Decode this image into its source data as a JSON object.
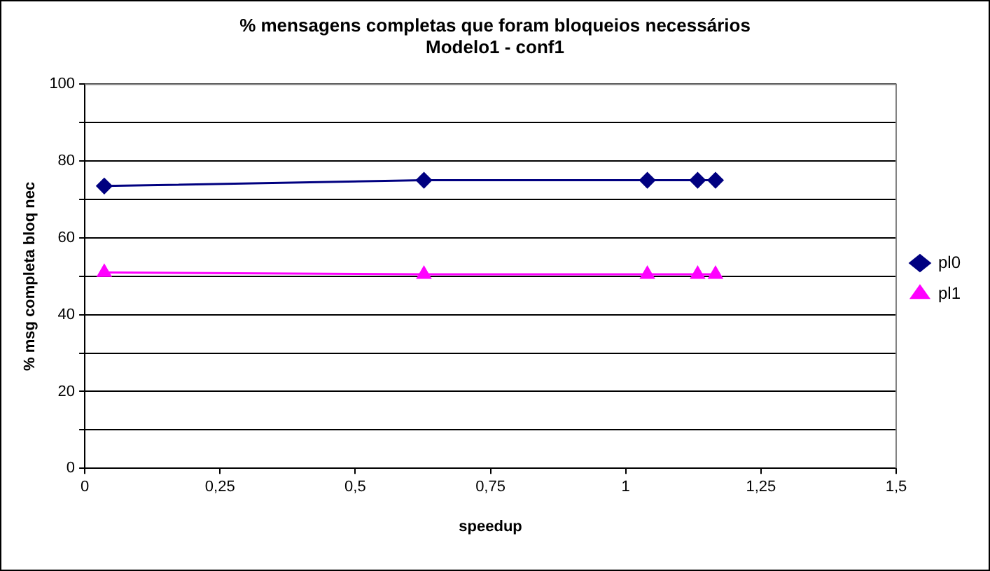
{
  "chart_data": {
    "type": "line",
    "title": [
      "% mensagens completas que foram bloqueios necessários",
      "Modelo1 - conf1"
    ],
    "xlabel": "speedup",
    "ylabel": "% msg completa bloq nec",
    "x": [
      0.036,
      0.627,
      1.04,
      1.133,
      1.166
    ],
    "series": [
      {
        "name": "pl0",
        "color": "#000080",
        "marker": "diamond",
        "values": [
          73.5,
          75,
          75,
          75,
          75
        ]
      },
      {
        "name": "pl1",
        "color": "#ff00ff",
        "marker": "triangle",
        "values": [
          51,
          50.5,
          50.5,
          50.5,
          50.5
        ]
      }
    ],
    "xlim": [
      0,
      1.5
    ],
    "xticks": [
      0,
      {
        "value": 0.25,
        "label": "0,25"
      },
      {
        "value": 0.5,
        "label": "0,5"
      },
      {
        "value": 0.75,
        "label": "0,75"
      },
      1,
      {
        "value": 1.25,
        "label": "1,25"
      },
      {
        "value": 1.5,
        "label": "1,5"
      }
    ],
    "ylim": [
      0,
      100
    ],
    "yticks": [
      0,
      {
        "value": 10,
        "label": null
      },
      20,
      {
        "value": 30,
        "label": null
      },
      40,
      {
        "value": 50,
        "label": null
      },
      60,
      {
        "value": 70,
        "label": null
      },
      80,
      {
        "value": 90,
        "label": null
      },
      100
    ],
    "grid": "y",
    "legend": "right"
  }
}
